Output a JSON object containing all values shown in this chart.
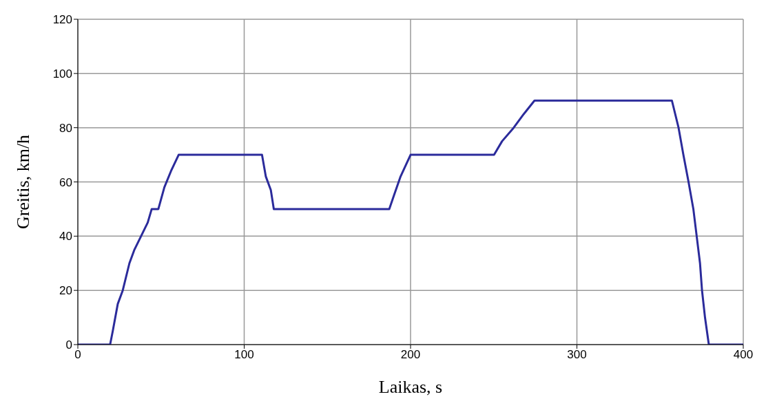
{
  "chart_data": {
    "type": "line",
    "xlabel": "Laikas, s",
    "ylabel": "Greitis, km/h",
    "x": [
      0,
      19.4,
      21,
      24,
      27,
      31,
      34,
      38,
      42,
      44.4,
      48.4,
      52,
      56,
      60.6,
      110.7,
      113,
      116,
      117.8,
      187.2,
      190,
      194,
      200,
      250.2,
      255,
      262,
      268,
      274.5,
      357.1,
      361.1,
      364,
      367.1,
      370,
      372,
      374,
      375.2,
      377,
      379.3,
      400
    ],
    "series": [
      {
        "color": "#2b2b9b",
        "values": [
          0,
          0,
          5,
          15,
          20,
          30,
          35,
          40,
          45,
          50,
          50,
          58,
          64,
          70,
          70,
          62,
          57,
          50,
          50,
          55,
          62,
          70,
          70,
          75,
          80,
          85,
          90,
          90,
          80,
          70,
          60,
          50,
          40,
          30,
          20,
          10,
          0,
          0
        ]
      }
    ],
    "xlim": [
      0,
      400
    ],
    "xticks": [
      0,
      100,
      200,
      300,
      400
    ],
    "ylim": [
      0,
      120
    ],
    "yticks": [
      0,
      20,
      40,
      60,
      80,
      100,
      120
    ],
    "grid": true,
    "marker": "none",
    "line_style": "solid"
  }
}
